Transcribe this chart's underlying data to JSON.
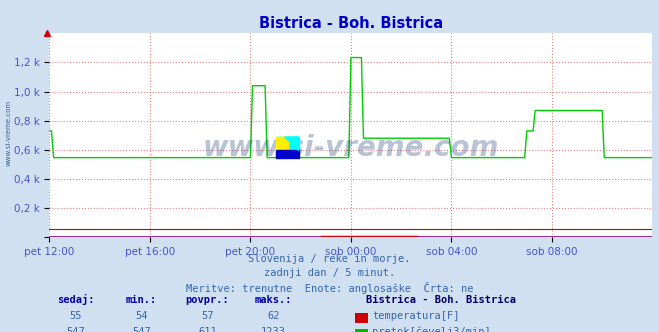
{
  "title": "Bistrica - Boh. Bistrica",
  "background_color": "#d0e0f0",
  "plot_bg_color": "#ffffff",
  "grid_color": "#e08080",
  "grid_style": ":",
  "ylabel_color": "#4455cc",
  "title_color": "#0000cc",
  "tick_color": "#4455cc",
  "watermark": "www.si-vreme.com",
  "watermark_color": "#1a3a7a",
  "subtitle_lines": [
    "Slovenija / reke in morje.",
    "zadnji dan / 5 minut.",
    "Meritve: trenutne  Enote: anglosaške  Črta: ne"
  ],
  "subtitle_color": "#3366aa",
  "legend_title": "Bistrica - Boh. Bistrica",
  "legend_title_color": "#000066",
  "legend_items": [
    {
      "label": "temperatura[F]",
      "color": "#cc0000"
    },
    {
      "label": "pretok[čevelj3/min]",
      "color": "#00bb00"
    }
  ],
  "stats_headers": [
    "sedaj:",
    "min.:",
    "povpr.:",
    "maks.:"
  ],
  "stats_values": [
    [
      55,
      54,
      57,
      62
    ],
    [
      547,
      547,
      611,
      1233
    ]
  ],
  "stats_color": "#3366aa",
  "stats_header_color": "#0000aa",
  "ylim": [
    0,
    1400
  ],
  "yticks": [
    0,
    200,
    400,
    600,
    800,
    1000,
    1200
  ],
  "ytick_labels": [
    "",
    "0,2 k",
    "0,4 k",
    "0,6 k",
    "0,8 k",
    "1,0 k",
    "1,2 k"
  ],
  "xtick_labels": [
    "pet 12:00",
    "pet 16:00",
    "pet 20:00",
    "sob 00:00",
    "sob 04:00",
    "sob 08:00"
  ],
  "xtick_positions": [
    0,
    48,
    96,
    144,
    192,
    240
  ],
  "total_points": 289,
  "temp_color": "#cc0000",
  "flow_color": "#00cc00",
  "xaxis_line_color": "#880088"
}
